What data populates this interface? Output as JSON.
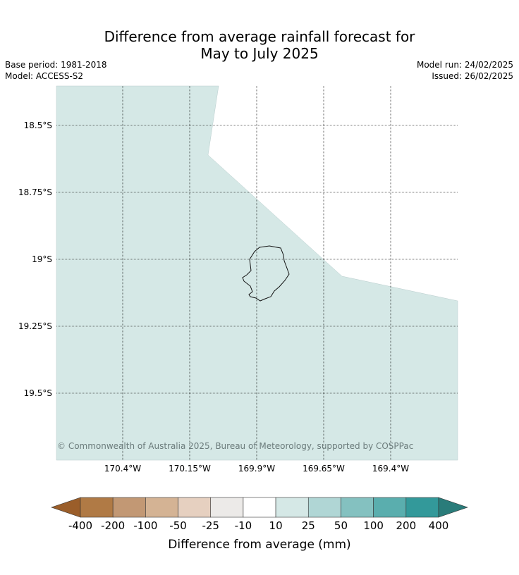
{
  "title": {
    "line1": "Difference from average rainfall forecast for",
    "line2": "May to July 2025"
  },
  "meta": {
    "base_period": "Base period: 1981-2018",
    "model": "Model: ACCESS-S2",
    "model_run": "Model run: 24/02/2025",
    "issued": "Issued: 26/02/2025"
  },
  "map": {
    "latitudes": [
      "18.5°S",
      "18.75°S",
      "19°S",
      "19.25°S",
      "19.5°S"
    ],
    "longitudes": [
      "170.4°W",
      "170.15°W",
      "169.9°W",
      "169.65°W",
      "169.4°W"
    ],
    "region_category": "10 to 25 mm above average",
    "copyright": "© Commonwealth of Australia 2025, Bureau of Meteorology, supported by COSPPac"
  },
  "colorbar": {
    "title": "Difference from average (mm)",
    "ticks": [
      "-400",
      "-200",
      "-100",
      "-50",
      "-25",
      "-10",
      "10",
      "25",
      "50",
      "100",
      "200",
      "400"
    ],
    "under_color": "#9b5e2a",
    "over_color": "#2a7c7a",
    "colors": [
      "#b07a45",
      "#c29874",
      "#d4b394",
      "#e6d0c0",
      "#eceae8",
      "#ffffff",
      "#d5e8e6",
      "#b0d6d5",
      "#84c1c0",
      "#5aaeae",
      "#33999a"
    ]
  }
}
